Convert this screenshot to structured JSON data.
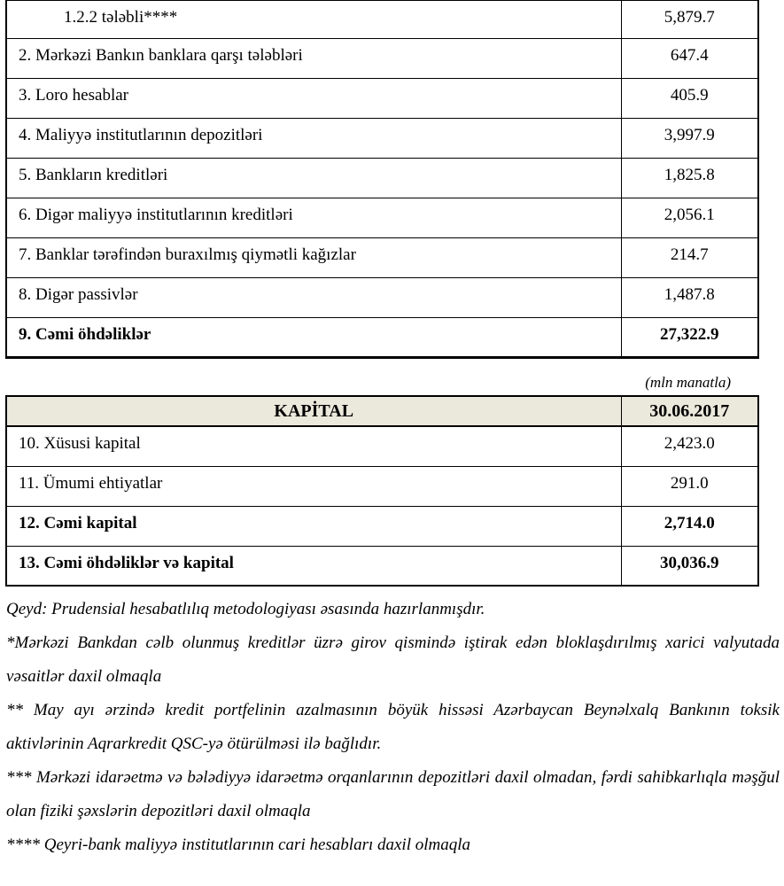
{
  "unit_note": "(mln manatla)",
  "liabilities_table": {
    "rows": [
      {
        "label": "1.2.2 tələbli****",
        "value": "5,879.7",
        "indent": true,
        "bold": false
      },
      {
        "label": "2. Mərkəzi Bankın banklara qarşı tələbləri",
        "value": "647.4",
        "indent": false,
        "bold": false
      },
      {
        "label": "3. Loro hesablar",
        "value": "405.9",
        "indent": false,
        "bold": false
      },
      {
        "label": "4. Maliyyə institutlarının  depozitləri",
        "value": "3,997.9",
        "indent": false,
        "bold": false
      },
      {
        "label": "5. Bankların kreditləri",
        "value": "1,825.8",
        "indent": false,
        "bold": false
      },
      {
        "label": "6. Digər maliyyə institutlarının kreditləri",
        "value": "2,056.1",
        "indent": false,
        "bold": false
      },
      {
        "label": "7. Banklar tərəfindən buraxılmış qiymətli kağızlar",
        "value": "214.7",
        "indent": false,
        "bold": false
      },
      {
        "label": "8. Digər passivlər",
        "value": "1,487.8",
        "indent": false,
        "bold": false
      },
      {
        "label": "9. Cəmi öhdəliklər",
        "value": "27,322.9",
        "indent": false,
        "bold": true
      }
    ]
  },
  "capital_table": {
    "header": {
      "title": "KAPİTAL",
      "date": "30.06.2017"
    },
    "rows": [
      {
        "label": "10. Xüsusi kapital",
        "value": "2,423.0",
        "indent": false,
        "bold": false
      },
      {
        "label": "11. Ümumi ehtiyatlar",
        "value": "291.0",
        "indent": false,
        "bold": false
      },
      {
        "label": "12. Cəmi kapital",
        "value": "2,714.0",
        "indent": false,
        "bold": true
      },
      {
        "label": "13. Cəmi öhdəliklər və kapital",
        "value": "30,036.9",
        "indent": false,
        "bold": true
      }
    ]
  },
  "notes": [
    {
      "text": "Qeyd: Prudensial hesabatlılıq metodologiyası əsasında hazırlanmışdır.",
      "justify": false
    },
    {
      "text": "*Mərkəzi Bankdan cəlb olunmuş kreditlər üzrə girov qismində iştirak edən bloklaşdırılmış xarici valyutada vəsaitlər daxil olmaqla",
      "justify": true
    },
    {
      "text": "** May ayı ərzində kredit portfelinin azalmasının böyük hissəsi Azərbaycan Beynəlxalq Bankının toksik aktivlərinin Aqrarkredit QSC-yə ötürülməsi ilə bağlıdır.",
      "justify": true
    },
    {
      "text": "*** Mərkəzi idarəetmə və bələdiyyə idarəetmə orqanlarının depozitləri daxil olmadan, fərdi sahibkarlıqla məşğul olan fiziki şəxslərin depozitləri daxil olmaqla",
      "justify": true
    },
    {
      "text": "**** Qeyri-bank maliyyə institutlarının cari hesabları daxil olmaqla",
      "justify": false
    }
  ],
  "colors": {
    "header_bg": "#EBE8DC",
    "border": "#000000",
    "text": "#000000"
  }
}
